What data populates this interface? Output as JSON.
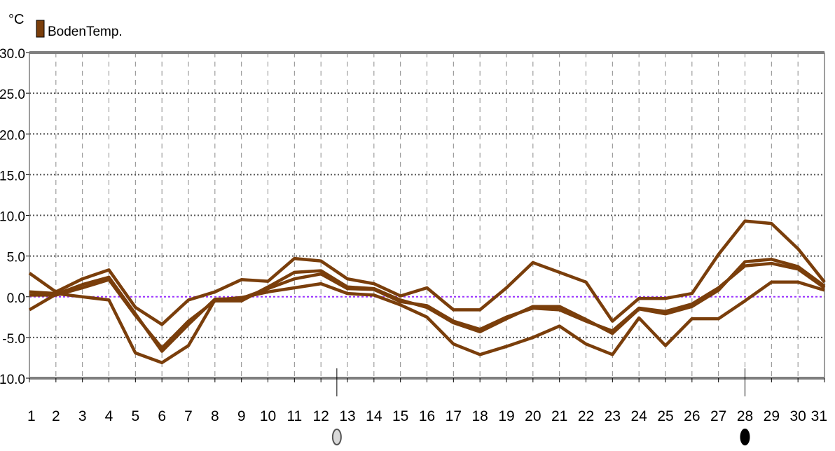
{
  "unit_label": "°C",
  "legend": {
    "label": "BodenTemp.",
    "color": "#7a3e0b"
  },
  "zero_line_color": "#9933ff",
  "series_color": "#7a3e0b",
  "markers": [
    {
      "day": 12.6,
      "icon": "moon-phase-full-icon"
    },
    {
      "day": 28,
      "icon": "moon-phase-new-icon"
    }
  ],
  "chart_data": {
    "type": "line",
    "title": "",
    "xlabel": "",
    "ylabel": "°C",
    "x": [
      1,
      2,
      3,
      4,
      5,
      6,
      7,
      8,
      9,
      10,
      11,
      12,
      13,
      14,
      15,
      16,
      17,
      18,
      19,
      20,
      21,
      22,
      23,
      24,
      25,
      26,
      27,
      28,
      29,
      30,
      31
    ],
    "xlim": [
      1,
      31
    ],
    "ylim": [
      -10,
      30
    ],
    "y_ticks": [
      "-10.0",
      "-5.0",
      "0.0",
      "5.0",
      "10.0",
      "15.0",
      "20.0",
      "25.0",
      "30.0"
    ],
    "x_ticks": [
      "1",
      "2",
      "3",
      "4",
      "5",
      "6",
      "7",
      "8",
      "9",
      "10",
      "11",
      "12",
      "13",
      "14",
      "15",
      "16",
      "17",
      "18",
      "19",
      "20",
      "21",
      "22",
      "23",
      "24",
      "25",
      "26",
      "27",
      "28",
      "29",
      "30",
      "31"
    ],
    "grid": true,
    "legend_position": "top-left",
    "series": [
      {
        "name": "",
        "values": [
          2.9,
          0.6,
          2.2,
          3.3,
          -1.3,
          -3.4,
          -0.4,
          0.6,
          2.1,
          1.9,
          4.7,
          4.4,
          2.2,
          1.6,
          0.1,
          1.1,
          -1.6,
          -1.6,
          1.1,
          4.2,
          3.0,
          1.8,
          -3.0,
          -0.2,
          -0.2,
          0.4,
          5.2,
          9.3,
          9.0,
          5.9,
          1.8
        ]
      },
      {
        "name": "",
        "values": [
          0.2,
          0.2,
          1.1,
          2.1,
          -2.3,
          -6.3,
          -3.0,
          -0.5,
          -0.5,
          1.2,
          3.0,
          3.2,
          1.2,
          1.0,
          -0.4,
          -1.3,
          -3.2,
          -4.3,
          -2.7,
          -1.2,
          -1.2,
          -2.8,
          -4.5,
          -1.5,
          -2.1,
          -1.2,
          0.8,
          4.3,
          4.6,
          3.7,
          1.3
        ]
      },
      {
        "name": "",
        "values": [
          -1.6,
          0.3,
          1.5,
          2.4,
          -2.1,
          -6.7,
          -3.4,
          -0.3,
          -0.2,
          1.0,
          2.2,
          2.8,
          1.0,
          0.9,
          -0.6,
          -1.1,
          -3.0,
          -4.0,
          -2.5,
          -1.4,
          -1.6,
          -3.0,
          -4.2,
          -1.4,
          -1.8,
          -0.9,
          1.1,
          3.8,
          4.1,
          3.4,
          1.1
        ]
      },
      {
        "name": "",
        "values": [
          0.6,
          0.4,
          0.0,
          -0.4,
          -6.9,
          -8.1,
          -6.0,
          -0.4,
          -0.1,
          0.6,
          1.1,
          1.6,
          0.4,
          0.2,
          -1.0,
          -2.5,
          -5.8,
          -7.1,
          -6.1,
          -5.0,
          -3.6,
          -5.8,
          -7.1,
          -2.6,
          -6.0,
          -2.7,
          -2.7,
          -0.5,
          1.8,
          1.8,
          0.8
        ]
      }
    ]
  }
}
